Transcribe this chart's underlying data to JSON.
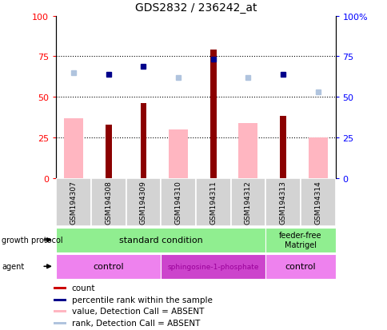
{
  "title": "GDS2832 / 236242_at",
  "samples": [
    "GSM194307",
    "GSM194308",
    "GSM194309",
    "GSM194310",
    "GSM194311",
    "GSM194312",
    "GSM194313",
    "GSM194314"
  ],
  "count_values": [
    null,
    33,
    46,
    null,
    79,
    null,
    38,
    null
  ],
  "value_absent": [
    37,
    null,
    null,
    30,
    null,
    34,
    null,
    25
  ],
  "rank_present": [
    null,
    64,
    69,
    null,
    73,
    null,
    64,
    null
  ],
  "rank_absent": [
    65,
    null,
    null,
    62,
    null,
    62,
    null,
    53
  ],
  "ylim": [
    0,
    100
  ],
  "y_ticks": [
    0,
    25,
    50,
    75,
    100
  ],
  "bar_color_count": "#8b0000",
  "bar_color_absent": "#ffb6c1",
  "dot_color_present": "#00008b",
  "dot_color_absent": "#b0c4de",
  "color_green": "#90ee90",
  "color_violet_light": "#ee82ee",
  "color_violet_dark": "#cc44cc",
  "legend": [
    {
      "label": "count",
      "color": "#cc0000"
    },
    {
      "label": "percentile rank within the sample",
      "color": "#00008b"
    },
    {
      "label": "value, Detection Call = ABSENT",
      "color": "#ffb6c1"
    },
    {
      "label": "rank, Detection Call = ABSENT",
      "color": "#b0c4de"
    }
  ]
}
